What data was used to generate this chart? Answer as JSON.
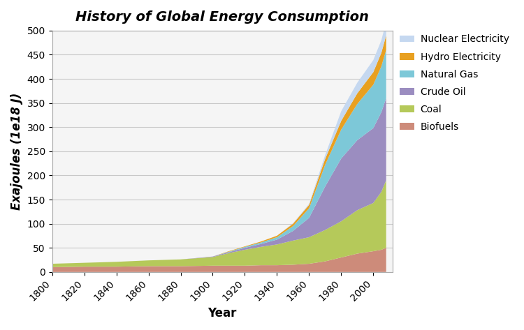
{
  "title": "History of Global Energy Consumption",
  "xlabel": "Year",
  "ylabel": "Exajoules (1e18 J)",
  "years": [
    1800,
    1820,
    1840,
    1860,
    1880,
    1900,
    1910,
    1920,
    1930,
    1940,
    1950,
    1960,
    1970,
    1980,
    1990,
    2000,
    2005,
    2008
  ],
  "biofuels": [
    10,
    11,
    11,
    12,
    12,
    13,
    13,
    13,
    14,
    14,
    15,
    17,
    22,
    30,
    38,
    43,
    46,
    50
  ],
  "coal": [
    7,
    8,
    10,
    12,
    14,
    18,
    26,
    33,
    38,
    43,
    50,
    55,
    65,
    75,
    90,
    100,
    120,
    140
  ],
  "crude_oil": [
    0,
    0,
    0,
    0,
    0,
    1,
    2,
    4,
    6,
    10,
    20,
    40,
    90,
    130,
    145,
    155,
    165,
    170
  ],
  "natural_gas": [
    0,
    0,
    0,
    0,
    0,
    0,
    1,
    2,
    3,
    5,
    10,
    20,
    45,
    60,
    75,
    90,
    95,
    100
  ],
  "hydro_electricity": [
    0,
    0,
    0,
    0,
    0,
    0,
    1,
    1,
    2,
    3,
    5,
    7,
    12,
    18,
    22,
    26,
    28,
    30
  ],
  "nuclear_electricity": [
    0,
    0,
    0,
    0,
    0,
    0,
    0,
    0,
    0,
    0,
    1,
    2,
    8,
    20,
    22,
    25,
    26,
    28
  ],
  "colors": {
    "biofuels": "#cd8b7a",
    "coal": "#b5c95a",
    "crude_oil": "#9b8dc0",
    "natural_gas": "#7dc8d8",
    "hydro_electricity": "#e8a020",
    "nuclear_electricity": "#c5d8f0"
  },
  "ylim": [
    0,
    500
  ],
  "yticks": [
    0,
    50,
    100,
    150,
    200,
    250,
    300,
    350,
    400,
    450,
    500
  ],
  "xticks": [
    1800,
    1820,
    1840,
    1860,
    1880,
    1900,
    1920,
    1940,
    1960,
    1980,
    2000
  ],
  "xlim": [
    1800,
    2012
  ],
  "background_color": "#ffffff",
  "plot_bg_color": "#f5f5f5",
  "title_fontsize": 14,
  "axis_label_fontsize": 12,
  "tick_fontsize": 10,
  "legend_fontsize": 10,
  "grid_color": "#c8c8c8"
}
